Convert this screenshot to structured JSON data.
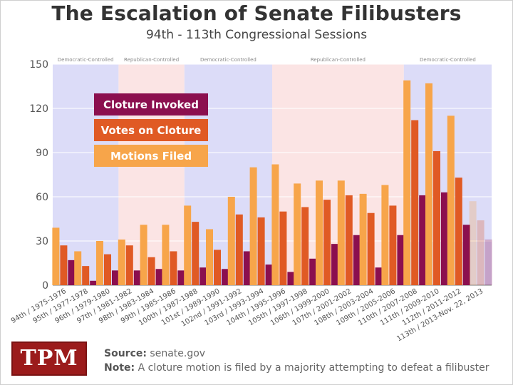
{
  "title": "The Escalation of Senate Filibusters",
  "subtitle": "94th - 113th Congressional Sessions",
  "logo_text": "TPM",
  "footer": {
    "source_label": "Source:",
    "source_text": "senate.gov",
    "note_label": "Note:",
    "note_text": "A cloture motion is filed by a majority attempting to defeat a filibuster"
  },
  "chart_data": {
    "type": "bar",
    "title": "The Escalation of Senate Filibusters",
    "ylim": [
      0,
      150
    ],
    "yticks": [
      0,
      30,
      60,
      90,
      120,
      150
    ],
    "grid": true,
    "legend_position": "top-left",
    "categories": [
      "94th / 1975-1976",
      "95th / 1977-1978",
      "96th / 1979-1980",
      "97th / 1981-1982",
      "98th / 1983-1984",
      "99th / 1985-1986",
      "100th / 1987-1988",
      "101st / 1989-1990",
      "102nd / 1991-1992",
      "103rd / 1993-1994",
      "104th / 1995-1996",
      "105th / 1997-1998",
      "106th / 1999-2000",
      "107th / 2001-2002",
      "108th / 2003-2004",
      "109th / 2005-2006",
      "110th / 2007-2008",
      "111th / 2009-2010",
      "112th / 2011-2012",
      "113th / 2013-Nov. 22, 2013"
    ],
    "series": [
      {
        "name": "Motions Filed",
        "color": "#f7a54a",
        "values": [
          39,
          23,
          30,
          31,
          41,
          41,
          54,
          38,
          60,
          80,
          82,
          69,
          71,
          71,
          62,
          68,
          139,
          137,
          115,
          57
        ]
      },
      {
        "name": "Votes on Cloture",
        "color": "#e05a24",
        "values": [
          27,
          13,
          21,
          27,
          19,
          23,
          43,
          24,
          48,
          46,
          50,
          53,
          58,
          61,
          49,
          54,
          112,
          91,
          73,
          44
        ]
      },
      {
        "name": "Cloture Invoked",
        "color": "#8b0f4f",
        "values": [
          17,
          3,
          10,
          10,
          11,
          10,
          12,
          11,
          23,
          14,
          9,
          18,
          28,
          34,
          12,
          34,
          61,
          63,
          41,
          31
        ]
      }
    ],
    "faded_categories": [
      "113th / 2013-Nov. 22, 2013"
    ],
    "legend": [
      "Cloture Invoked",
      "Votes on Cloture",
      "Motions Filed"
    ],
    "control_periods": [
      {
        "label": "Democratic-Controlled",
        "party": "dem",
        "first": "94th / 1975-1976",
        "last": "96th / 1979-1980"
      },
      {
        "label": "Republican-Controlled",
        "party": "rep",
        "first": "97th / 1981-1982",
        "last": "99th / 1985-1986"
      },
      {
        "label": "Democratic-Controlled",
        "party": "dem",
        "first": "100th / 1987-1988",
        "last": "103rd / 1993-1994"
      },
      {
        "label": "Republican-Controlled",
        "party": "rep",
        "first": "104th / 1995-1996",
        "last": "109th / 2005-2006"
      },
      {
        "label": "Democratic-Controlled",
        "party": "dem",
        "first": "110th / 2007-2008",
        "last": "113th / 2013-Nov. 22, 2013"
      }
    ],
    "colors": {
      "dem_band": "#dcdcf8",
      "rep_band": "#fbe4e4",
      "grid": "#ffffff",
      "axis_text": "#555555"
    }
  }
}
